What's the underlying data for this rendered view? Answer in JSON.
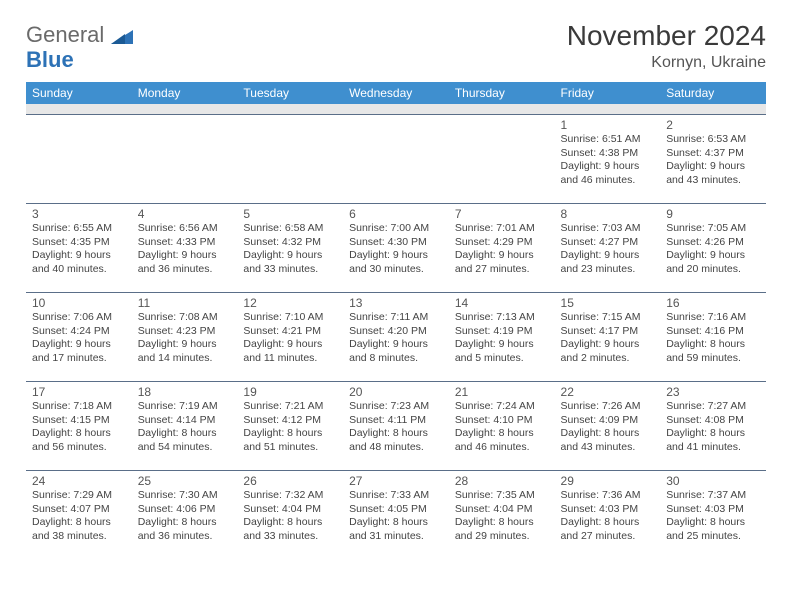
{
  "logo": {
    "word1": "General",
    "word2": "Blue"
  },
  "title": "November 2024",
  "location": "Kornyn, Ukraine",
  "header_color": "#3f8fcf",
  "row_border_color": "#5a6e88",
  "blank_row_color": "#e7e7e7",
  "days": [
    "Sunday",
    "Monday",
    "Tuesday",
    "Wednesday",
    "Thursday",
    "Friday",
    "Saturday"
  ],
  "weeks": [
    [
      null,
      null,
      null,
      null,
      null,
      {
        "n": "1",
        "sr": "Sunrise: 6:51 AM",
        "ss": "Sunset: 4:38 PM",
        "d1": "Daylight: 9 hours",
        "d2": "and 46 minutes."
      },
      {
        "n": "2",
        "sr": "Sunrise: 6:53 AM",
        "ss": "Sunset: 4:37 PM",
        "d1": "Daylight: 9 hours",
        "d2": "and 43 minutes."
      }
    ],
    [
      {
        "n": "3",
        "sr": "Sunrise: 6:55 AM",
        "ss": "Sunset: 4:35 PM",
        "d1": "Daylight: 9 hours",
        "d2": "and 40 minutes."
      },
      {
        "n": "4",
        "sr": "Sunrise: 6:56 AM",
        "ss": "Sunset: 4:33 PM",
        "d1": "Daylight: 9 hours",
        "d2": "and 36 minutes."
      },
      {
        "n": "5",
        "sr": "Sunrise: 6:58 AM",
        "ss": "Sunset: 4:32 PM",
        "d1": "Daylight: 9 hours",
        "d2": "and 33 minutes."
      },
      {
        "n": "6",
        "sr": "Sunrise: 7:00 AM",
        "ss": "Sunset: 4:30 PM",
        "d1": "Daylight: 9 hours",
        "d2": "and 30 minutes."
      },
      {
        "n": "7",
        "sr": "Sunrise: 7:01 AM",
        "ss": "Sunset: 4:29 PM",
        "d1": "Daylight: 9 hours",
        "d2": "and 27 minutes."
      },
      {
        "n": "8",
        "sr": "Sunrise: 7:03 AM",
        "ss": "Sunset: 4:27 PM",
        "d1": "Daylight: 9 hours",
        "d2": "and 23 minutes."
      },
      {
        "n": "9",
        "sr": "Sunrise: 7:05 AM",
        "ss": "Sunset: 4:26 PM",
        "d1": "Daylight: 9 hours",
        "d2": "and 20 minutes."
      }
    ],
    [
      {
        "n": "10",
        "sr": "Sunrise: 7:06 AM",
        "ss": "Sunset: 4:24 PM",
        "d1": "Daylight: 9 hours",
        "d2": "and 17 minutes."
      },
      {
        "n": "11",
        "sr": "Sunrise: 7:08 AM",
        "ss": "Sunset: 4:23 PM",
        "d1": "Daylight: 9 hours",
        "d2": "and 14 minutes."
      },
      {
        "n": "12",
        "sr": "Sunrise: 7:10 AM",
        "ss": "Sunset: 4:21 PM",
        "d1": "Daylight: 9 hours",
        "d2": "and 11 minutes."
      },
      {
        "n": "13",
        "sr": "Sunrise: 7:11 AM",
        "ss": "Sunset: 4:20 PM",
        "d1": "Daylight: 9 hours",
        "d2": "and 8 minutes."
      },
      {
        "n": "14",
        "sr": "Sunrise: 7:13 AM",
        "ss": "Sunset: 4:19 PM",
        "d1": "Daylight: 9 hours",
        "d2": "and 5 minutes."
      },
      {
        "n": "15",
        "sr": "Sunrise: 7:15 AM",
        "ss": "Sunset: 4:17 PM",
        "d1": "Daylight: 9 hours",
        "d2": "and 2 minutes."
      },
      {
        "n": "16",
        "sr": "Sunrise: 7:16 AM",
        "ss": "Sunset: 4:16 PM",
        "d1": "Daylight: 8 hours",
        "d2": "and 59 minutes."
      }
    ],
    [
      {
        "n": "17",
        "sr": "Sunrise: 7:18 AM",
        "ss": "Sunset: 4:15 PM",
        "d1": "Daylight: 8 hours",
        "d2": "and 56 minutes."
      },
      {
        "n": "18",
        "sr": "Sunrise: 7:19 AM",
        "ss": "Sunset: 4:14 PM",
        "d1": "Daylight: 8 hours",
        "d2": "and 54 minutes."
      },
      {
        "n": "19",
        "sr": "Sunrise: 7:21 AM",
        "ss": "Sunset: 4:12 PM",
        "d1": "Daylight: 8 hours",
        "d2": "and 51 minutes."
      },
      {
        "n": "20",
        "sr": "Sunrise: 7:23 AM",
        "ss": "Sunset: 4:11 PM",
        "d1": "Daylight: 8 hours",
        "d2": "and 48 minutes."
      },
      {
        "n": "21",
        "sr": "Sunrise: 7:24 AM",
        "ss": "Sunset: 4:10 PM",
        "d1": "Daylight: 8 hours",
        "d2": "and 46 minutes."
      },
      {
        "n": "22",
        "sr": "Sunrise: 7:26 AM",
        "ss": "Sunset: 4:09 PM",
        "d1": "Daylight: 8 hours",
        "d2": "and 43 minutes."
      },
      {
        "n": "23",
        "sr": "Sunrise: 7:27 AM",
        "ss": "Sunset: 4:08 PM",
        "d1": "Daylight: 8 hours",
        "d2": "and 41 minutes."
      }
    ],
    [
      {
        "n": "24",
        "sr": "Sunrise: 7:29 AM",
        "ss": "Sunset: 4:07 PM",
        "d1": "Daylight: 8 hours",
        "d2": "and 38 minutes."
      },
      {
        "n": "25",
        "sr": "Sunrise: 7:30 AM",
        "ss": "Sunset: 4:06 PM",
        "d1": "Daylight: 8 hours",
        "d2": "and 36 minutes."
      },
      {
        "n": "26",
        "sr": "Sunrise: 7:32 AM",
        "ss": "Sunset: 4:04 PM",
        "d1": "Daylight: 8 hours",
        "d2": "and 33 minutes."
      },
      {
        "n": "27",
        "sr": "Sunrise: 7:33 AM",
        "ss": "Sunset: 4:05 PM",
        "d1": "Daylight: 8 hours",
        "d2": "and 31 minutes."
      },
      {
        "n": "28",
        "sr": "Sunrise: 7:35 AM",
        "ss": "Sunset: 4:04 PM",
        "d1": "Daylight: 8 hours",
        "d2": "and 29 minutes."
      },
      {
        "n": "29",
        "sr": "Sunrise: 7:36 AM",
        "ss": "Sunset: 4:03 PM",
        "d1": "Daylight: 8 hours",
        "d2": "and 27 minutes."
      },
      {
        "n": "30",
        "sr": "Sunrise: 7:37 AM",
        "ss": "Sunset: 4:03 PM",
        "d1": "Daylight: 8 hours",
        "d2": "and 25 minutes."
      }
    ]
  ]
}
